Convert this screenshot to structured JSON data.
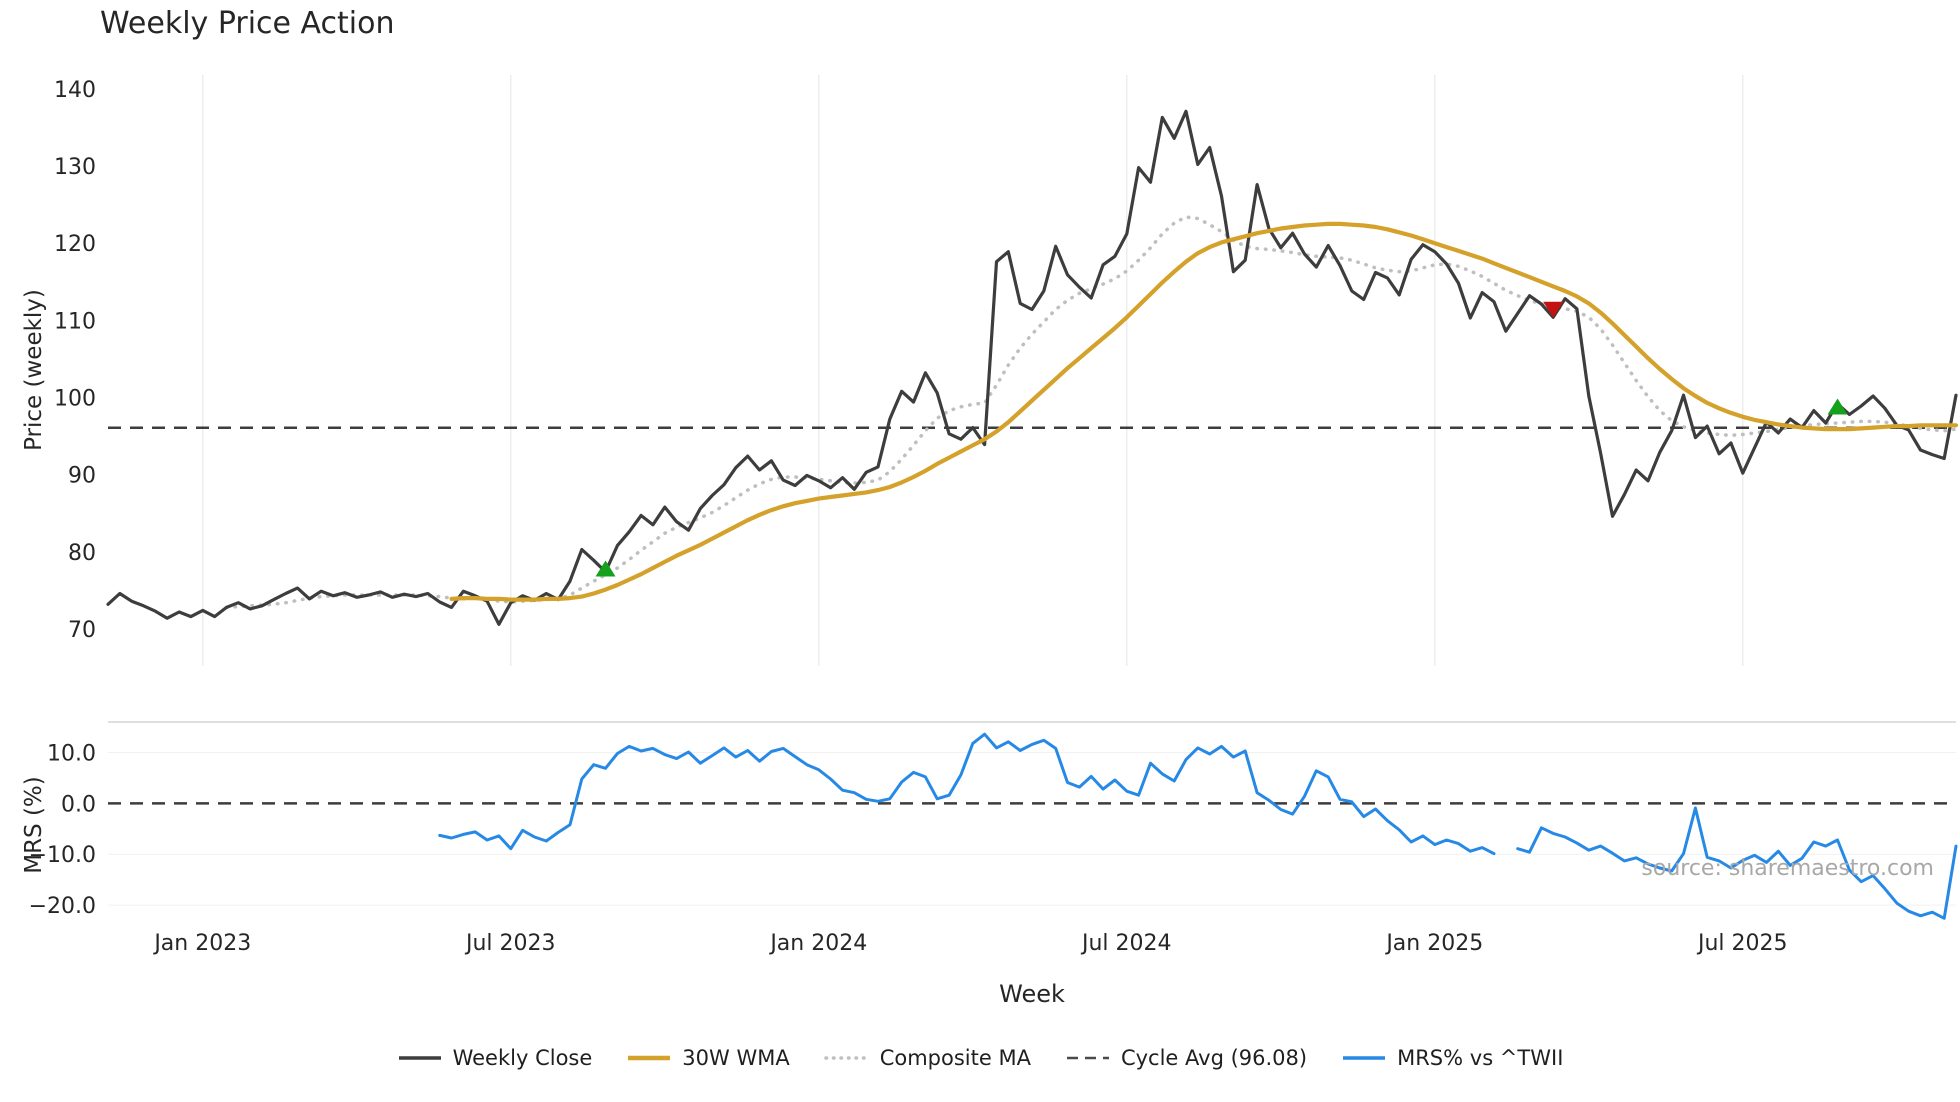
{
  "chart_data": {
    "type": "line",
    "title": "Weekly Price Action",
    "xlabel": "Week",
    "watermark": "source: sharemaestro.com",
    "x_axis": {
      "tick_labels": [
        "Jan 2023",
        "Jul 2023",
        "Jan 2024",
        "Jul 2024",
        "Jan 2025",
        "Jul 2025"
      ],
      "tick_weeks": [
        8,
        34,
        60,
        86,
        112,
        138
      ],
      "weeks_total": 156
    },
    "panels": {
      "price": {
        "ylabel": "Price (weekly)",
        "ticks": [
          140,
          130,
          120,
          110,
          100,
          90,
          80,
          70
        ],
        "tick_labels": [
          "140",
          "130",
          "120",
          "110",
          "100",
          "90",
          "80",
          "70"
        ],
        "ylim": [
          65.2,
          141.8
        ],
        "cycle_avg": 96.08
      },
      "mrs": {
        "ylabel": "MRS (%)",
        "ticks": [
          10,
          0,
          -10,
          -20
        ],
        "tick_labels": [
          "10.0",
          "0.0",
          "−10.0",
          "−20.0"
        ],
        "ylim": [
          -24.5,
          16
        ],
        "zero_line": 0
      }
    },
    "series": {
      "weekly_close": {
        "label": "Weekly Close",
        "panel": "price",
        "color": "#3d3d3d",
        "style": "solid",
        "width": 3.2,
        "start_week": 0,
        "values": [
          73.2,
          74.6,
          73.6,
          73.0,
          72.3,
          71.4,
          72.2,
          71.6,
          72.4,
          71.6,
          72.8,
          73.4,
          72.6,
          73.0,
          73.8,
          74.6,
          75.3,
          73.9,
          74.9,
          74.3,
          74.7,
          74.1,
          74.4,
          74.8,
          74.1,
          74.5,
          74.2,
          74.6,
          73.5,
          72.8,
          74.9,
          74.3,
          73.6,
          70.6,
          73.4,
          74.3,
          73.7,
          74.6,
          73.8,
          76.2,
          80.3,
          78.9,
          77.4,
          80.8,
          82.6,
          84.7,
          83.5,
          85.8,
          83.9,
          82.8,
          85.6,
          87.3,
          88.7,
          90.9,
          92.4,
          90.6,
          91.8,
          89.3,
          88.6,
          89.9,
          89.2,
          88.3,
          89.6,
          88.1,
          90.3,
          91.0,
          97.2,
          100.8,
          99.4,
          103.2,
          100.6,
          95.3,
          94.6,
          96.1,
          93.9,
          117.6,
          118.9,
          112.2,
          111.4,
          113.8,
          119.6,
          115.9,
          114.3,
          112.9,
          117.2,
          118.3,
          121.2,
          129.8,
          127.9,
          136.3,
          133.6,
          137.1,
          130.2,
          132.4,
          126.1,
          116.3,
          117.8,
          127.6,
          121.9,
          119.4,
          121.3,
          118.6,
          116.9,
          119.7,
          117.1,
          113.8,
          112.7,
          116.2,
          115.5,
          113.3,
          117.9,
          119.8,
          118.9,
          117.3,
          114.8,
          110.3,
          113.6,
          112.4,
          108.6,
          110.9,
          113.2,
          112.1,
          110.4,
          112.8,
          111.5,
          100.2,
          92.8,
          84.6,
          87.4,
          90.6,
          89.2,
          92.9,
          95.7,
          100.3,
          94.8,
          96.3,
          92.7,
          94.1,
          90.2,
          93.5,
          96.8,
          95.4,
          97.2,
          96.1,
          98.3,
          96.7,
          99.2,
          97.8,
          98.9,
          100.2,
          98.6,
          96.4,
          95.8,
          93.2,
          92.6,
          92.1,
          100.3
        ]
      },
      "wma_30w": {
        "label": "30W WMA",
        "panel": "price",
        "color": "#d4a12a",
        "style": "solid",
        "width": 4.2,
        "start_week": 29,
        "values": [
          73.9,
          74.0,
          74.0,
          73.9,
          73.9,
          73.8,
          73.8,
          73.8,
          73.9,
          73.9,
          74.0,
          74.2,
          74.6,
          75.1,
          75.7,
          76.4,
          77.1,
          77.9,
          78.7,
          79.5,
          80.2,
          80.9,
          81.7,
          82.5,
          83.3,
          84.1,
          84.8,
          85.4,
          85.9,
          86.3,
          86.6,
          86.9,
          87.1,
          87.3,
          87.5,
          87.7,
          88.0,
          88.4,
          89.0,
          89.7,
          90.5,
          91.4,
          92.2,
          93.0,
          93.8,
          94.6,
          95.6,
          96.8,
          98.2,
          99.6,
          101.0,
          102.4,
          103.8,
          105.1,
          106.4,
          107.7,
          109.0,
          110.4,
          111.9,
          113.4,
          114.9,
          116.3,
          117.6,
          118.7,
          119.5,
          120.1,
          120.5,
          120.9,
          121.3,
          121.6,
          121.9,
          122.1,
          122.3,
          122.4,
          122.5,
          122.5,
          122.4,
          122.3,
          122.1,
          121.8,
          121.4,
          121.0,
          120.5,
          120.0,
          119.5,
          119.0,
          118.5,
          118.0,
          117.4,
          116.8,
          116.2,
          115.6,
          115.0,
          114.4,
          113.8,
          113.1,
          112.2,
          111.0,
          109.6,
          108.1,
          106.6,
          105.1,
          103.7,
          102.4,
          101.2,
          100.2,
          99.3,
          98.6,
          98.0,
          97.5,
          97.1,
          96.8,
          96.5,
          96.3,
          96.1,
          96.0,
          95.9,
          95.9,
          95.9,
          96.0,
          96.1,
          96.2,
          96.3,
          96.3,
          96.4,
          96.4,
          96.4,
          96.4
        ]
      },
      "composite_ma": {
        "label": "Composite MA",
        "panel": "price",
        "color": "#bfbfbf",
        "style": "dotted",
        "width": 3.5,
        "start_week": 10,
        "values": [
          72.8,
          72.9,
          73.0,
          73.1,
          73.2,
          73.4,
          73.7,
          74.0,
          74.2,
          74.3,
          74.4,
          74.4,
          74.4,
          74.4,
          74.4,
          74.4,
          74.4,
          74.3,
          74.2,
          74.0,
          73.9,
          74.0,
          73.9,
          73.6,
          73.5,
          73.6,
          73.7,
          73.8,
          73.9,
          74.4,
          75.3,
          76.2,
          77.0,
          77.9,
          79.0,
          80.2,
          81.3,
          82.4,
          83.2,
          83.8,
          84.4,
          85.1,
          86.0,
          87.0,
          88.0,
          88.8,
          89.4,
          89.7,
          89.7,
          89.6,
          89.4,
          89.2,
          89.0,
          88.9,
          89.0,
          89.3,
          90.4,
          92.0,
          93.8,
          95.7,
          97.3,
          98.3,
          98.8,
          99.1,
          99.3,
          101.6,
          104.2,
          106.4,
          108.2,
          109.8,
          111.4,
          112.6,
          113.5,
          114.1,
          114.7,
          115.4,
          116.4,
          117.8,
          119.4,
          121.2,
          122.6,
          123.4,
          123.2,
          122.4,
          121.5,
          120.4,
          119.6,
          119.3,
          119.2,
          119.0,
          118.8,
          118.5,
          118.3,
          118.2,
          118.1,
          117.8,
          117.3,
          116.8,
          116.5,
          116.3,
          116.4,
          116.8,
          117.2,
          117.3,
          117.0,
          116.4,
          115.7,
          114.8,
          113.9,
          113.2,
          112.6,
          112.1,
          111.8,
          111.5,
          111.2,
          110.4,
          108.9,
          106.8,
          104.5,
          102.2,
          100.1,
          98.3,
          97.0,
          96.2,
          95.7,
          95.4,
          95.2,
          95.1,
          95.2,
          95.4,
          95.6,
          95.9,
          96.1,
          96.3,
          96.5,
          96.6,
          96.7,
          96.8,
          96.9,
          96.9,
          96.8,
          96.6,
          96.3,
          96.0,
          95.8,
          95.7,
          95.9
        ]
      },
      "mrs_pct": {
        "label": "MRS% vs ^TWII",
        "panel": "mrs",
        "color": "#2789e6",
        "style": "solid",
        "width": 3,
        "start_week": 28,
        "values": [
          -6.3,
          -6.8,
          -6.1,
          -5.6,
          -7.2,
          -6.4,
          -8.9,
          -5.3,
          -6.6,
          -7.4,
          -5.7,
          -4.2,
          4.8,
          7.6,
          6.9,
          9.8,
          11.2,
          10.3,
          10.8,
          9.6,
          8.8,
          10.1,
          7.9,
          9.4,
          10.9,
          9.1,
          10.4,
          8.3,
          10.2,
          10.8,
          9.2,
          7.6,
          6.6,
          4.8,
          2.6,
          2.1,
          0.8,
          0.4,
          0.9,
          4.2,
          6.1,
          5.2,
          0.9,
          1.6,
          5.6,
          11.8,
          13.6,
          10.9,
          12.1,
          10.4,
          11.6,
          12.4,
          10.8,
          4.1,
          3.2,
          5.3,
          2.8,
          4.6,
          2.4,
          1.6,
          7.9,
          5.8,
          4.4,
          8.6,
          10.9,
          9.7,
          11.2,
          9.1,
          10.3,
          2.1,
          0.6,
          -1.2,
          -2.1,
          1.4,
          6.4,
          5.2,
          0.8,
          0.3,
          -2.6,
          -1.1,
          -3.4,
          -5.2,
          -7.6,
          -6.4,
          -8.1,
          -7.2,
          -7.9,
          -9.4,
          -8.7,
          -9.9,
          null,
          -8.9,
          -9.6,
          -4.8,
          -5.9,
          -6.6,
          -7.8,
          -9.2,
          -8.4,
          -9.8,
          -11.3,
          -10.7,
          -11.9,
          -12.7,
          -13.3,
          -9.9,
          -0.9,
          -10.6,
          -11.3,
          -12.7,
          -11.2,
          -10.2,
          -11.6,
          -9.4,
          -12.2,
          -10.8,
          -7.6,
          -8.4,
          -7.2,
          -13.1,
          -15.4,
          -14.2,
          -16.8,
          -19.6,
          -21.2,
          -22.1,
          -21.4,
          -22.6,
          -8.4
        ]
      }
    },
    "reference_lines": [
      {
        "label": "Cycle Avg (96.08)",
        "panel": "price",
        "value": 96.08,
        "color": "#3d3d3d",
        "style": "dashed"
      },
      {
        "label": "MRS zero",
        "panel": "mrs",
        "value": 0,
        "color": "#3d3d3d",
        "style": "dashed"
      }
    ],
    "signals": [
      {
        "type": "buy",
        "week": 42,
        "price": 77.7,
        "color": "#15a11c"
      },
      {
        "type": "sell",
        "week": 122,
        "price": 111.5,
        "color": "#c41212"
      },
      {
        "type": "buy",
        "week": 146,
        "price": 98.7,
        "color": "#15a11c"
      }
    ],
    "legend": [
      {
        "label": "Weekly Close",
        "color": "#3d3d3d",
        "style": "solid",
        "width": 3.5
      },
      {
        "label": "30W WMA",
        "color": "#d4a12a",
        "style": "solid",
        "width": 4.5
      },
      {
        "label": "Composite MA",
        "color": "#bfbfbf",
        "style": "dotted",
        "width": 3.5
      },
      {
        "label": "Cycle Avg (96.08)",
        "color": "#4a4a4a",
        "style": "dashed",
        "width": 2.6
      },
      {
        "label": "MRS% vs ^TWII",
        "color": "#2789e6",
        "style": "solid",
        "width": 3.5
      }
    ]
  }
}
